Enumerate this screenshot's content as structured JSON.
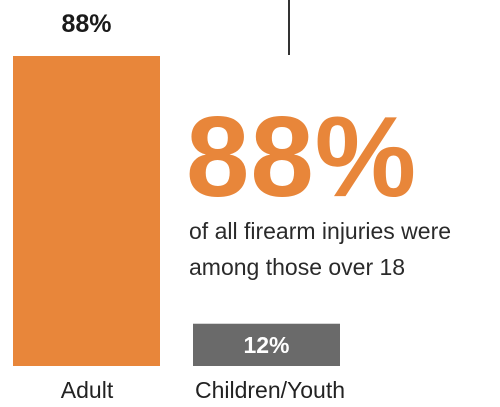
{
  "chart_data": {
    "type": "bar",
    "categories": [
      "Adult",
      "Children/Youth"
    ],
    "values": [
      88,
      12
    ],
    "data_labels": [
      "88%",
      "12%"
    ],
    "unit": "%",
    "ylim": [
      0,
      100
    ],
    "grid": false,
    "bar_colors": [
      "#e8863a",
      "#6a6a6a"
    ]
  },
  "callout": {
    "value": "88%",
    "line1": "of all firearm injuries were",
    "line2": "among those over 18",
    "color": "#e8863a"
  }
}
